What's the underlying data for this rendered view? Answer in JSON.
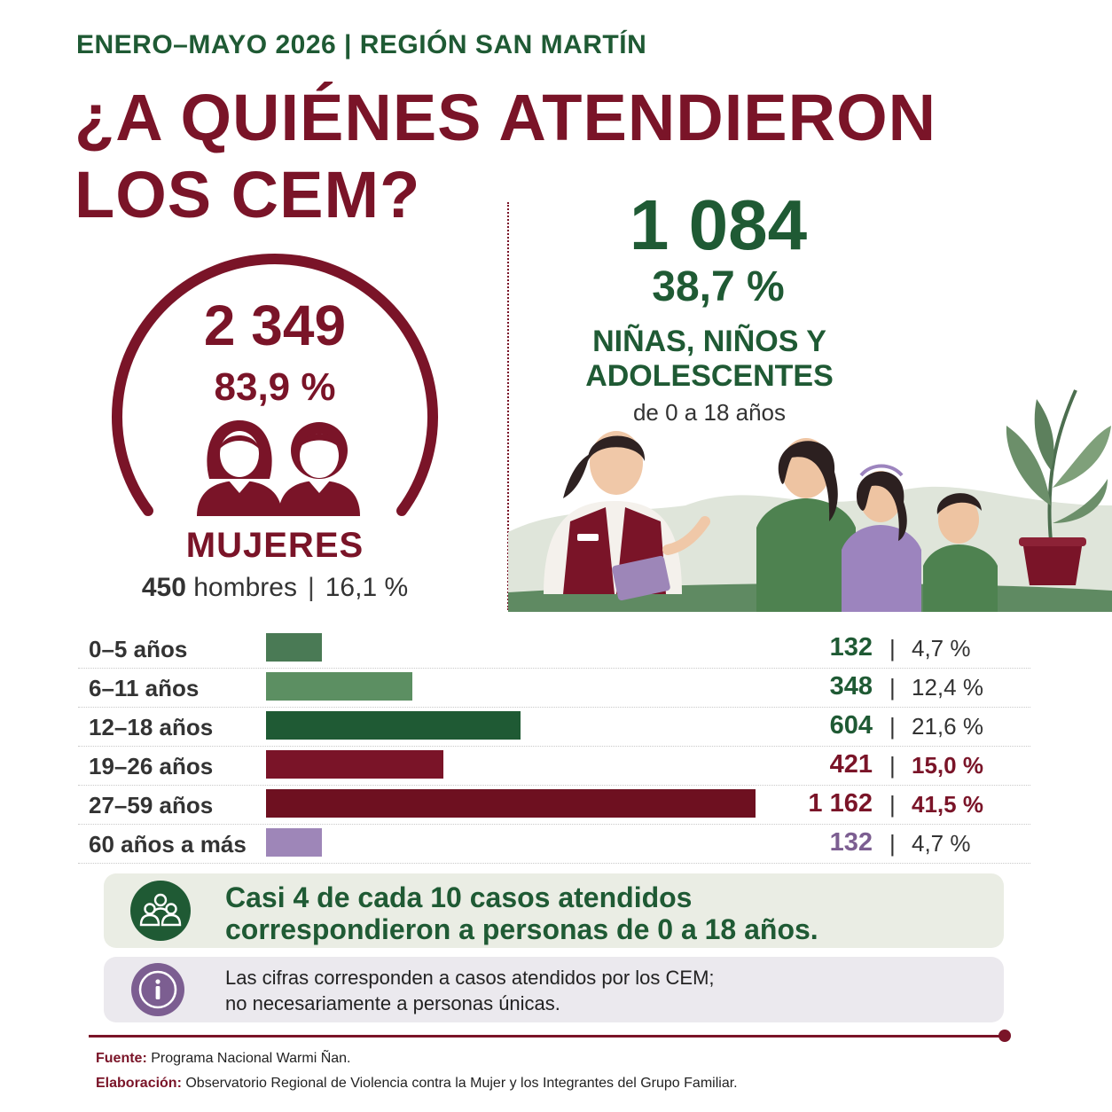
{
  "header": {
    "kicker": "ENERO–MAYO 2026 | REGIÓN SAN MARTÍN",
    "title_line_1": "¿A QUIÉNES ATENDIERON",
    "title_line_2": "LOS CEM?"
  },
  "women": {
    "count": "2 349",
    "pct": "83,9 %",
    "label": "MUJERES",
    "men_count": "450",
    "men_word": "hombres",
    "men_sep": "|",
    "men_pct": "16,1 %",
    "icons": [
      "woman-icon",
      "man-icon"
    ]
  },
  "children": {
    "count": "1 084",
    "pct": "38,7 %",
    "label_line_1": "NIÑAS, NIÑOS Y",
    "label_line_2": "ADOLESCENTES",
    "range": "de 0 a 18 años"
  },
  "chart_data": {
    "type": "bar",
    "orientation": "horizontal",
    "categories": [
      "0–5 años",
      "6–11 años",
      "12–18 años",
      "19–26 años",
      "27–59 años",
      "60 años a más"
    ],
    "values": [
      132,
      348,
      604,
      421,
      1162,
      132
    ],
    "value_labels": [
      "132",
      "348",
      "604",
      "421",
      "1 162",
      "132"
    ],
    "percent_labels": [
      "4,7 %",
      "12,4 %",
      "21,6 %",
      "15,0 %",
      "41,5 %",
      "4,7 %"
    ],
    "separator": "|",
    "xlim": [
      0,
      1162
    ],
    "colors": [
      "#4a7a55",
      "#5c8f62",
      "#1f5a34",
      "#7a1428",
      "#6e1020",
      "#9e86b8"
    ],
    "count_colors": [
      "#1f5a34",
      "#1f5a34",
      "#1f5a34",
      "#7a1428",
      "#7a1428",
      "#7c5e91"
    ],
    "percent_colors": [
      "#333333",
      "#333333",
      "#333333",
      "#7a1428",
      "#7a1428",
      "#333333"
    ]
  },
  "callout": {
    "line_1": "Casi 4 de cada 10 casos atendidos",
    "line_2": "correspondieron a personas de 0 a 18 años.",
    "icon": "people-group-icon"
  },
  "note": {
    "line_1": "Las cifras corresponden a casos atendidos por los CEM;",
    "line_2": "no necesariamente a personas únicas.",
    "icon": "info-icon"
  },
  "footer": {
    "source_key": "Fuente:",
    "source_value": "Programa Nacional Warmi Ñan.",
    "elab_key": "Elaboración:",
    "elab_value": "Observatorio Regional de Violencia contra la Mujer y los Integrantes del Grupo Familiar."
  },
  "colors": {
    "maroon": "#7a1428",
    "green": "#1f5a34",
    "purple": "#7c5e91"
  }
}
